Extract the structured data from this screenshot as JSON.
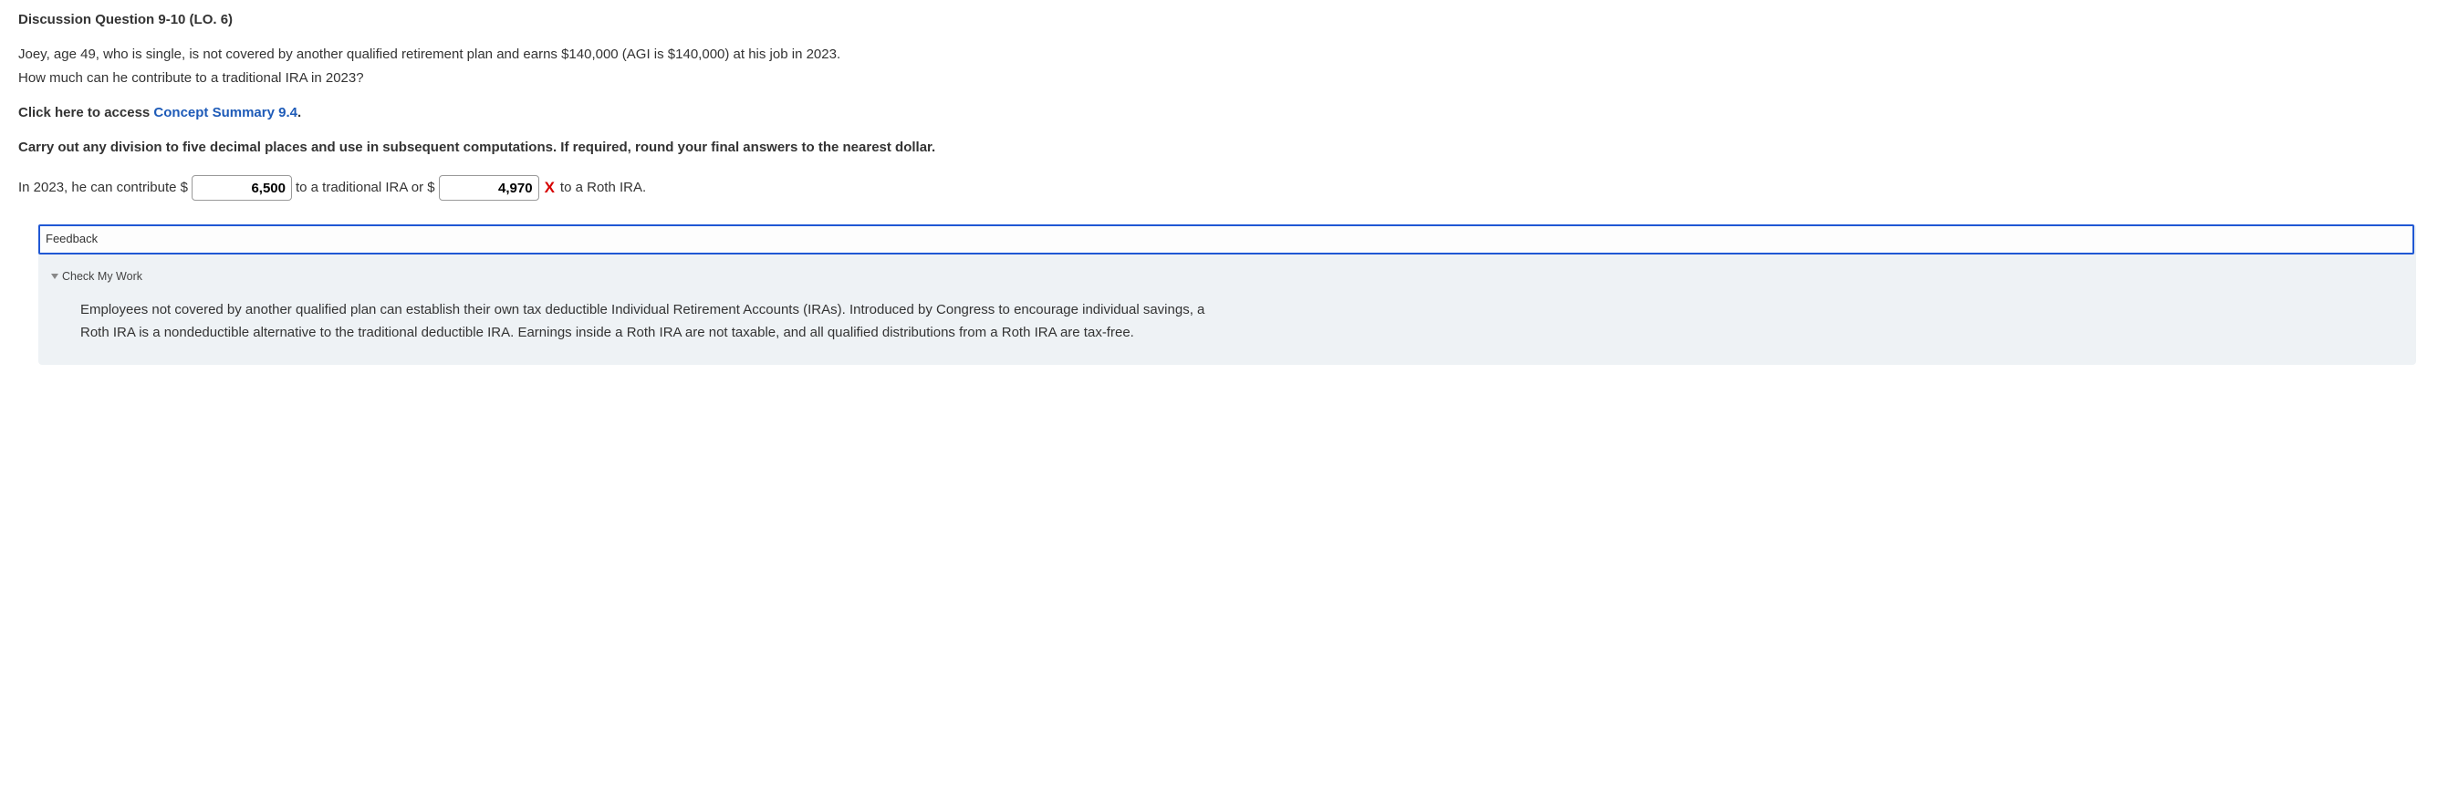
{
  "question": {
    "title": "Discussion Question 9-10 (LO. 6)",
    "body_line1": "Joey, age 49, who is single, is not covered by another qualified retirement plan and earns $140,000 (AGI is $140,000) at his job in 2023.",
    "body_line2": "How much can he contribute to a traditional IRA in 2023?",
    "access_prefix": "Click here to access ",
    "concept_link": "Concept Summary 9.4",
    "access_suffix": ".",
    "instructions": "Carry out any division to five decimal places and use in subsequent computations. If required, round your final answers to the nearest dollar."
  },
  "answer": {
    "prefix": "In 2023, he can contribute $",
    "input1_value": "6,500",
    "mid1": " to a traditional IRA or $",
    "input2_value": "4,970",
    "wrong_mark": "X",
    "suffix": " to a Roth IRA."
  },
  "feedback": {
    "header_label": "Feedback",
    "check_label": "Check My Work",
    "body": "Employees not covered by another qualified plan can establish their own tax deductible Individual Retirement Accounts (IRAs). Introduced by Congress to encourage individual savings, a Roth IRA is a nondeductible alternative to the traditional deductible IRA. Earnings inside a Roth IRA are not taxable, and all qualified distributions from a Roth IRA are tax-free."
  },
  "colors": {
    "link": "#1e5bb8",
    "error": "#d60000",
    "feedback_bg": "#eef2f5",
    "feedback_border": "#2058d4"
  }
}
